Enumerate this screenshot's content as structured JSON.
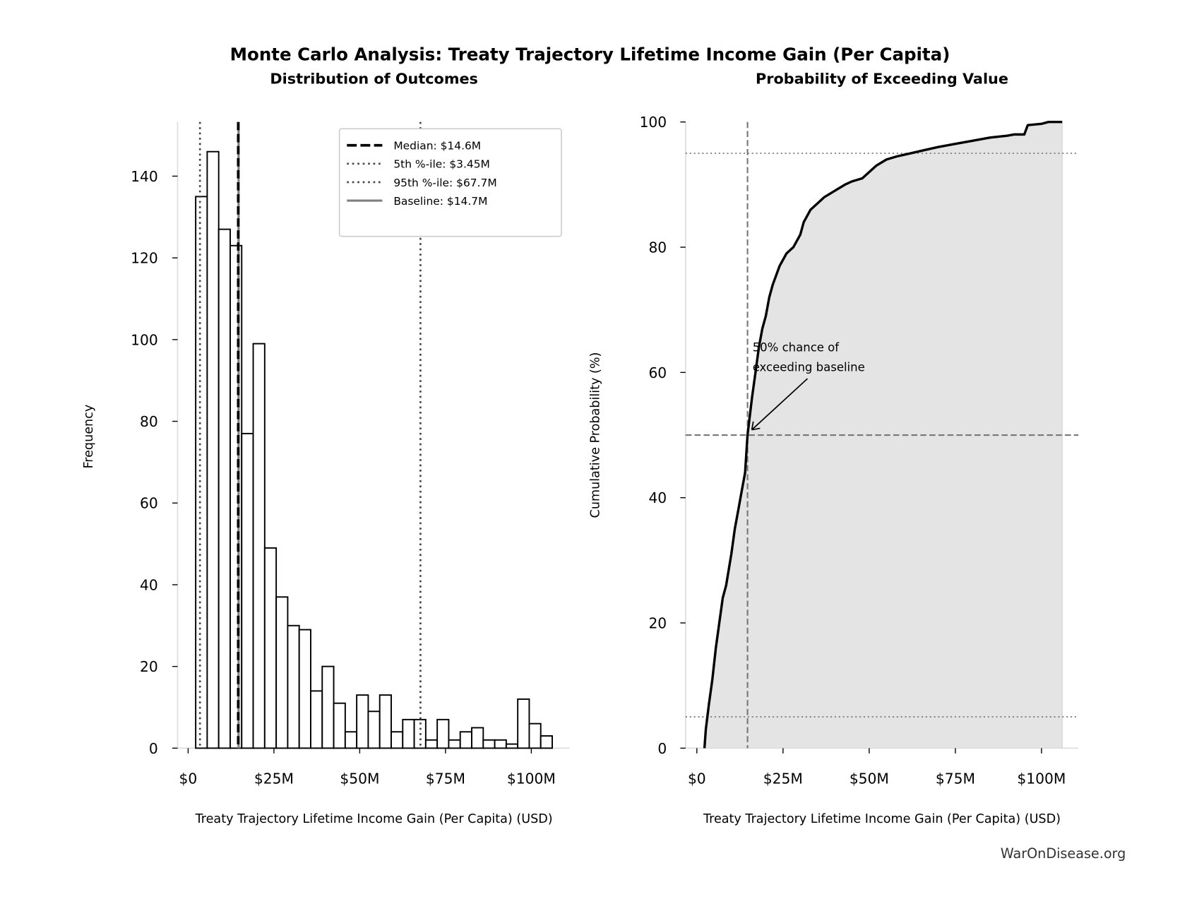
{
  "title": "Monte Carlo Analysis: Treaty Trajectory Lifetime Income Gain (Per Capita)",
  "watermark": "WarOnDisease.org",
  "chart_data": [
    {
      "type": "bar",
      "title": "Distribution of Outcomes",
      "xlabel": "Treaty Trajectory Lifetime Income Gain (Per Capita) (USD)",
      "ylabel": "Frequency",
      "xlim": [
        -3,
        111
      ],
      "ylim": [
        0,
        153
      ],
      "x_unit": "millions USD",
      "bin_start": 2.2,
      "bin_end": 106.1,
      "values": [
        135,
        146,
        127,
        123,
        77,
        99,
        49,
        37,
        30,
        29,
        14,
        20,
        11,
        4,
        13,
        9,
        13,
        4,
        7,
        7,
        2,
        7,
        2,
        4,
        5,
        2,
        2,
        1,
        12,
        6,
        3
      ],
      "x_ticks": [
        0,
        25,
        50,
        75,
        100
      ],
      "x_tick_labels": [
        "$0",
        "$25M",
        "$50M",
        "$75M",
        "$100M"
      ],
      "y_ticks": [
        0,
        20,
        40,
        60,
        80,
        100,
        120,
        140
      ],
      "y_tick_labels": [
        "0",
        "20",
        "40",
        "60",
        "80",
        "100",
        "120",
        "140"
      ],
      "reference_lines": [
        {
          "label": "Median: $14.6M",
          "value": 14.6,
          "style": "dashed",
          "color": "#000000"
        },
        {
          "label": "5th %-ile: $3.45M",
          "value": 3.45,
          "style": "dotted",
          "color": "#444444"
        },
        {
          "label": "95th %-ile: $67.7M",
          "value": 67.7,
          "style": "dotted",
          "color": "#444444"
        },
        {
          "label": "Baseline: $14.7M",
          "value": 14.7,
          "style": "solid",
          "color": "#808080"
        }
      ],
      "legend_position": "top-right",
      "grid": false
    },
    {
      "type": "line",
      "title": "Probability of Exceeding Value",
      "xlabel": "Treaty Trajectory Lifetime Income Gain (Per Capita) (USD)",
      "ylabel": "Cumulative Probability (%)",
      "xlim": [
        -3,
        111
      ],
      "ylim": [
        0,
        100
      ],
      "x_unit": "millions USD",
      "x": [
        2.2,
        2.6,
        3.5,
        4.5,
        5.5,
        6.5,
        7.5,
        8.5,
        10,
        11,
        12,
        13,
        14,
        14.7,
        16,
        17,
        18,
        19,
        20,
        21,
        22,
        24,
        26,
        28,
        30,
        31,
        33,
        35,
        37,
        40,
        43,
        45,
        48,
        50,
        52,
        55,
        58,
        62,
        66,
        70,
        75,
        80,
        85,
        90,
        92,
        95,
        96,
        100,
        102,
        106
      ],
      "y": [
        0,
        3,
        7,
        11,
        16,
        20,
        24,
        26,
        31,
        35,
        38,
        41,
        44,
        50,
        56,
        60,
        64,
        67,
        69,
        72,
        74,
        77,
        79,
        80,
        82,
        84,
        86,
        87,
        88,
        89,
        90,
        90.5,
        91,
        92,
        93,
        94,
        94.5,
        95,
        95.5,
        96,
        96.5,
        97,
        97.5,
        97.8,
        98,
        98,
        99.5,
        99.7,
        100,
        100
      ],
      "x_ticks": [
        0,
        25,
        50,
        75,
        100
      ],
      "x_tick_labels": [
        "$0",
        "$25M",
        "$50M",
        "$75M",
        "$100M"
      ],
      "y_ticks": [
        0,
        20,
        40,
        60,
        80,
        100
      ],
      "y_tick_labels": [
        "0",
        "20",
        "40",
        "60",
        "80",
        "100"
      ],
      "reference_lines": [
        {
          "axis": "x",
          "value": 14.7,
          "style": "dashed"
        },
        {
          "axis": "y",
          "value": 50,
          "style": "dashed"
        },
        {
          "axis": "y",
          "value": 95,
          "style": "dotted"
        },
        {
          "axis": "y",
          "value": 5,
          "style": "dotted"
        }
      ],
      "annotation": "50% chance of\nexceeding baseline",
      "annotation_lines": [
        "50% chance of",
        "exceeding baseline"
      ],
      "fill_color": "#e4e4e4",
      "line_color": "#000000",
      "grid": false
    }
  ]
}
